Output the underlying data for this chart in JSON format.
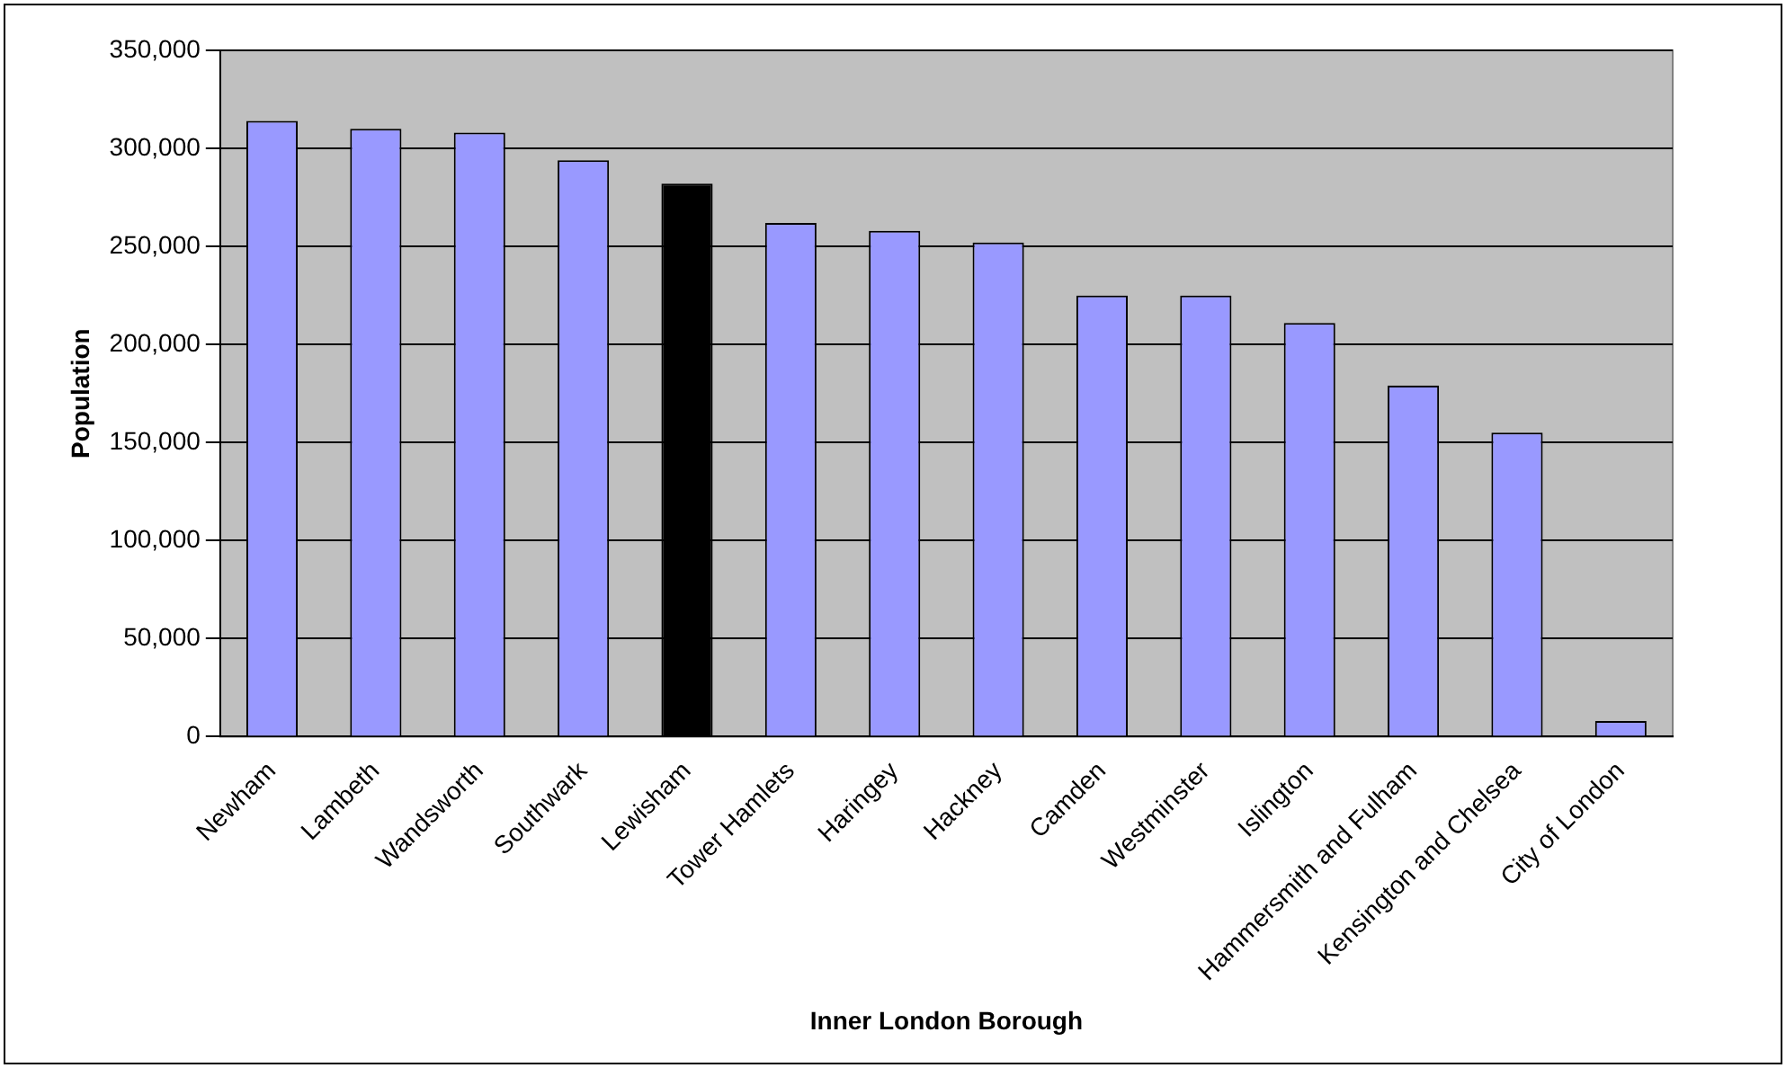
{
  "chart_data": {
    "type": "bar",
    "xlabel": "Inner London Borough",
    "ylabel": "Population",
    "categories": [
      "Newham",
      "Lambeth",
      "Wandsworth",
      "Southwark",
      "Lewisham",
      "Tower Hamlets",
      "Haringey",
      "Hackney",
      "Camden",
      "Westminster",
      "Islington",
      "Hammersmith and Fulham",
      "Kensington and Chelsea",
      "City of London"
    ],
    "values": [
      314000,
      310000,
      308000,
      294000,
      282000,
      262000,
      258000,
      252000,
      225000,
      225000,
      211000,
      179000,
      155000,
      8000
    ],
    "colors": [
      "#9999ff",
      "#9999ff",
      "#9999ff",
      "#9999ff",
      "#000000",
      "#9999ff",
      "#9999ff",
      "#9999ff",
      "#9999ff",
      "#9999ff",
      "#9999ff",
      "#9999ff",
      "#9999ff",
      "#9999ff"
    ],
    "ylim": [
      0,
      350000
    ],
    "yticks": [
      0,
      {
        "value": 50000,
        "label": "50,000"
      },
      {
        "value": 100000,
        "label": "100,000"
      },
      {
        "value": 150000,
        "label": "150,000"
      },
      {
        "value": 200000,
        "label": "200,000"
      },
      {
        "value": 250000,
        "label": "250,000"
      },
      {
        "value": 300000,
        "label": "300,000"
      },
      {
        "value": 350000,
        "label": "350,000"
      }
    ],
    "grid": "y",
    "legend": false
  }
}
